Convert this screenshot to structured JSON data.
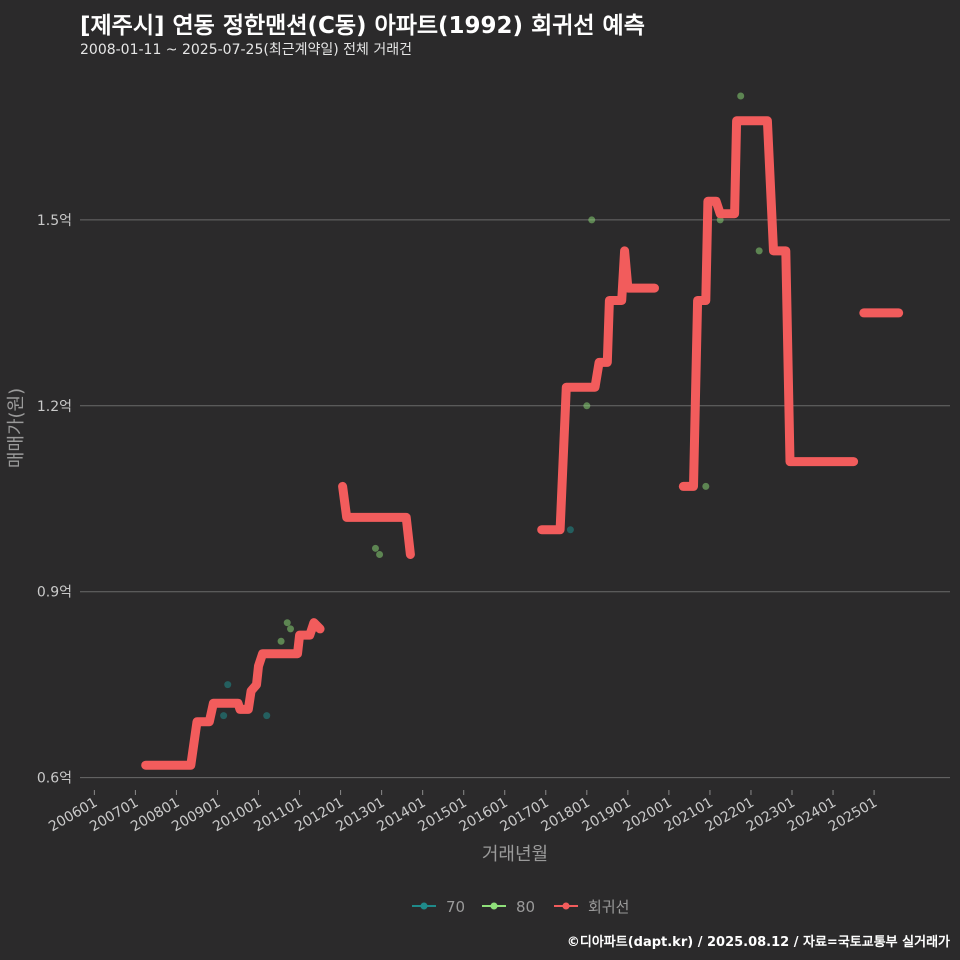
{
  "title": "[제주시] 연동 정한맨션(C동) 아파트(1992) 회귀선 예측",
  "subtitle": "2008-01-11 ~ 2025-07-25(최근계약일) 전체 거래건",
  "caption": "©디아파트(dapt.kr) / 2025.08.12 / 자료=국토교통부 실거래가",
  "chart_data": {
    "type": "scatter",
    "xlabel": "거래년월",
    "ylabel": "매매가(원)",
    "xlim": [
      2005.65,
      2026.85
    ],
    "ylim": [
      0.58,
      1.75
    ],
    "yticks": [
      {
        "value": 0.6,
        "label": "0.6억"
      },
      {
        "value": 0.9,
        "label": "0.9억"
      },
      {
        "value": 1.2,
        "label": "1.2억"
      },
      {
        "value": 1.5,
        "label": "1.5억"
      }
    ],
    "xticks": [
      {
        "value": 2006,
        "label": "200601"
      },
      {
        "value": 2007,
        "label": "200701"
      },
      {
        "value": 2008,
        "label": "200801"
      },
      {
        "value": 2009,
        "label": "200901"
      },
      {
        "value": 2010,
        "label": "201001"
      },
      {
        "value": 2011,
        "label": "201101"
      },
      {
        "value": 2012,
        "label": "201201"
      },
      {
        "value": 2013,
        "label": "201301"
      },
      {
        "value": 2014,
        "label": "201401"
      },
      {
        "value": 2015,
        "label": "201501"
      },
      {
        "value": 2016,
        "label": "201601"
      },
      {
        "value": 2017,
        "label": "201701"
      },
      {
        "value": 2018,
        "label": "201801"
      },
      {
        "value": 2019,
        "label": "201901"
      },
      {
        "value": 2020,
        "label": "202001"
      },
      {
        "value": 2021,
        "label": "202101"
      },
      {
        "value": 2022,
        "label": "202201"
      },
      {
        "value": 2023,
        "label": "202301"
      },
      {
        "value": 2024,
        "label": "202401"
      },
      {
        "value": 2025,
        "label": "202501"
      }
    ],
    "legend": [
      {
        "name": "70",
        "color": "#1f8a8a"
      },
      {
        "name": "80",
        "color": "#8fe07a"
      },
      {
        "name": "회귀선",
        "color": "#f25c5c"
      }
    ],
    "series": [
      {
        "name": "70",
        "color": "#1f8a8a",
        "points": [
          [
            2009.15,
            0.7
          ],
          [
            2009.25,
            0.75
          ],
          [
            2010.2,
            0.7
          ],
          [
            2017.6,
            1.0
          ]
        ]
      },
      {
        "name": "80",
        "color": "#8fe07a",
        "points": [
          [
            2010.55,
            0.82
          ],
          [
            2010.7,
            0.85
          ],
          [
            2010.78,
            0.84
          ],
          [
            2012.85,
            0.97
          ],
          [
            2012.95,
            0.96
          ],
          [
            2018.0,
            1.2
          ],
          [
            2018.12,
            1.5
          ],
          [
            2020.9,
            1.07
          ],
          [
            2021.25,
            1.5
          ],
          [
            2021.75,
            1.7
          ],
          [
            2022.2,
            1.45
          ]
        ]
      },
      {
        "name": "회귀선",
        "color": "#f25c5c",
        "segments": [
          [
            [
              2007.25,
              0.62
            ],
            [
              2008.35,
              0.62
            ],
            [
              2008.5,
              0.69
            ],
            [
              2008.8,
              0.69
            ],
            [
              2008.9,
              0.72
            ],
            [
              2009.5,
              0.72
            ],
            [
              2009.55,
              0.71
            ],
            [
              2009.75,
              0.71
            ],
            [
              2009.82,
              0.74
            ],
            [
              2009.95,
              0.75
            ],
            [
              2010.0,
              0.78
            ],
            [
              2010.1,
              0.8
            ],
            [
              2010.95,
              0.8
            ],
            [
              2011.0,
              0.83
            ],
            [
              2011.25,
              0.83
            ],
            [
              2011.35,
              0.85
            ],
            [
              2011.5,
              0.84
            ]
          ],
          [
            [
              2012.05,
              1.07
            ],
            [
              2012.15,
              1.02
            ],
            [
              2013.6,
              1.02
            ],
            [
              2013.7,
              0.96
            ]
          ],
          [
            [
              2016.9,
              1.0
            ],
            [
              2017.35,
              1.0
            ],
            [
              2017.5,
              1.23
            ],
            [
              2018.2,
              1.23
            ],
            [
              2018.3,
              1.27
            ],
            [
              2018.5,
              1.27
            ],
            [
              2018.55,
              1.37
            ],
            [
              2018.85,
              1.37
            ],
            [
              2018.92,
              1.45
            ],
            [
              2019.0,
              1.39
            ],
            [
              2019.65,
              1.39
            ]
          ],
          [
            [
              2020.35,
              1.07
            ],
            [
              2020.6,
              1.07
            ],
            [
              2020.7,
              1.37
            ],
            [
              2020.9,
              1.37
            ],
            [
              2020.95,
              1.53
            ],
            [
              2021.15,
              1.53
            ],
            [
              2021.25,
              1.51
            ],
            [
              2021.6,
              1.51
            ],
            [
              2021.65,
              1.66
            ],
            [
              2022.4,
              1.66
            ],
            [
              2022.55,
              1.45
            ],
            [
              2022.85,
              1.45
            ],
            [
              2022.95,
              1.11
            ],
            [
              2024.5,
              1.11
            ]
          ],
          [
            [
              2024.75,
              1.35
            ],
            [
              2025.6,
              1.35
            ]
          ]
        ]
      }
    ]
  }
}
